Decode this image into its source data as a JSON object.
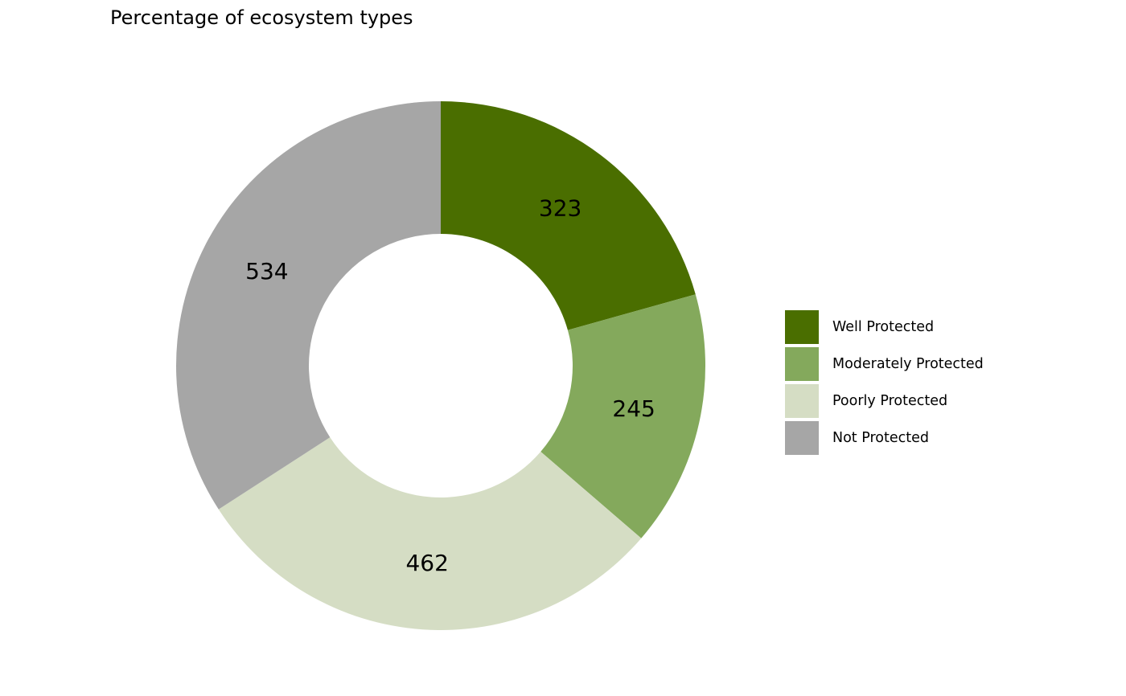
{
  "chart_data": {
    "type": "pie",
    "title": "Percentage of ecosystem types",
    "categories": [
      "Well Protected",
      "Moderately Protected",
      "Poorly Protected",
      "Not Protected"
    ],
    "values": [
      323,
      245,
      462,
      534
    ],
    "colors": [
      "#4a6e00",
      "#84a95c",
      "#d5ddc4",
      "#a6a6a6"
    ],
    "legend_position": "right",
    "hole": "donut"
  }
}
